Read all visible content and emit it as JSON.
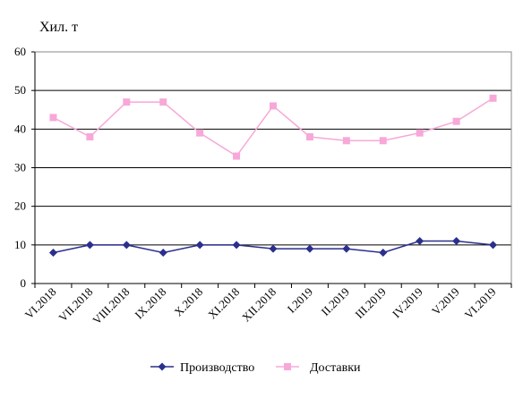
{
  "chart_data": {
    "type": "line",
    "ylabel": "Хил. т",
    "ylim": [
      0,
      60
    ],
    "yticks": [
      0,
      10,
      20,
      30,
      40,
      50,
      60
    ],
    "grid": true,
    "legend_position": "bottom",
    "categories": [
      "VI.2018",
      "VII.2018",
      "VIII.2018",
      "IX.2018",
      "X.2018",
      "XI.2018",
      "XII.2018",
      "I.2019",
      "II.2019",
      "III.2019",
      "IV.2019",
      "V.2019",
      "VI.2019"
    ],
    "series": [
      {
        "name": "Производство",
        "color": "#2b2f8c",
        "marker": "diamond",
        "values": [
          8,
          10,
          10,
          8,
          10,
          10,
          9,
          9,
          9,
          8,
          11,
          11,
          10
        ]
      },
      {
        "name": "Доставки",
        "color": "#f7a8d8",
        "marker": "square",
        "values": [
          43,
          38,
          47,
          47,
          39,
          33,
          46,
          38,
          37,
          37,
          39,
          42,
          48
        ]
      }
    ]
  }
}
